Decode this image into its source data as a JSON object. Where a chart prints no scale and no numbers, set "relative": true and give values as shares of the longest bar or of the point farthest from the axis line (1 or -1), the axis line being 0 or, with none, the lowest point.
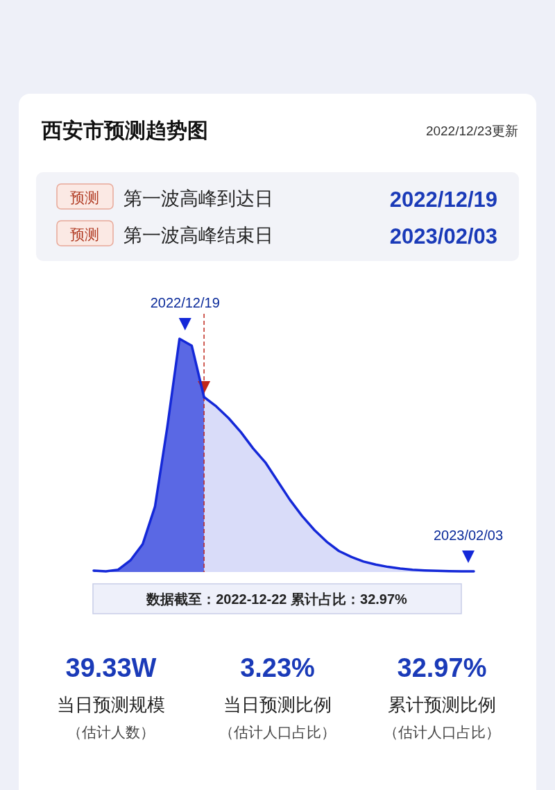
{
  "chart_data": {
    "type": "area",
    "title": "西安市预测趋势图",
    "subtitle": "2022/12/23更新",
    "relative": true,
    "categories": [
      null,
      null,
      null,
      null,
      null,
      null,
      null,
      null,
      null,
      null,
      null,
      null,
      null,
      null,
      null,
      null,
      null,
      null,
      null,
      null,
      null,
      null,
      null,
      null,
      null,
      null,
      null,
      null,
      null,
      null,
      null,
      null
    ],
    "series": [
      {
        "color": "#1428d8",
        "values": [
          0.006,
          0.003,
          0.01,
          0.05,
          0.12,
          0.28,
          0.62,
          1,
          0.97,
          0.75,
          null,
          null,
          null,
          null,
          null,
          null,
          null,
          null,
          null,
          null,
          null,
          null,
          null,
          null,
          null,
          null,
          null,
          null,
          null,
          null,
          null,
          null
        ]
      },
      {
        "color": "#1428d8",
        "values": [
          null,
          null,
          null,
          null,
          null,
          null,
          null,
          null,
          null,
          0.75,
          0.71,
          0.66,
          0.6,
          0.53,
          0.47,
          0.39,
          0.31,
          0.24,
          0.18,
          0.13,
          0.09,
          0.065,
          0.045,
          0.032,
          0.022,
          0.015,
          0.01,
          0.007,
          0.005,
          0.004,
          0.003,
          0.003
        ]
      }
    ],
    "ref_lines": [
      {
        "axis": "x",
        "color": "#c0281c",
        "line_style": "dashed"
      }
    ],
    "annotations": [
      "2022/12/19",
      "2023/02/03",
      "数据截至：2022-12-22   累计占比：32.97%",
      "预测",
      "第一波高峰到达日",
      "2022/12/19",
      "预测",
      "第一波高峰结束日",
      "2023/02/03",
      "39.33W",
      "当日预测规模",
      "（估计人数）",
      "3.23%",
      "当日预测比例",
      "（估计人口占比）",
      "32.97%",
      "累计预测比例",
      "（估计人口占比）"
    ]
  }
}
